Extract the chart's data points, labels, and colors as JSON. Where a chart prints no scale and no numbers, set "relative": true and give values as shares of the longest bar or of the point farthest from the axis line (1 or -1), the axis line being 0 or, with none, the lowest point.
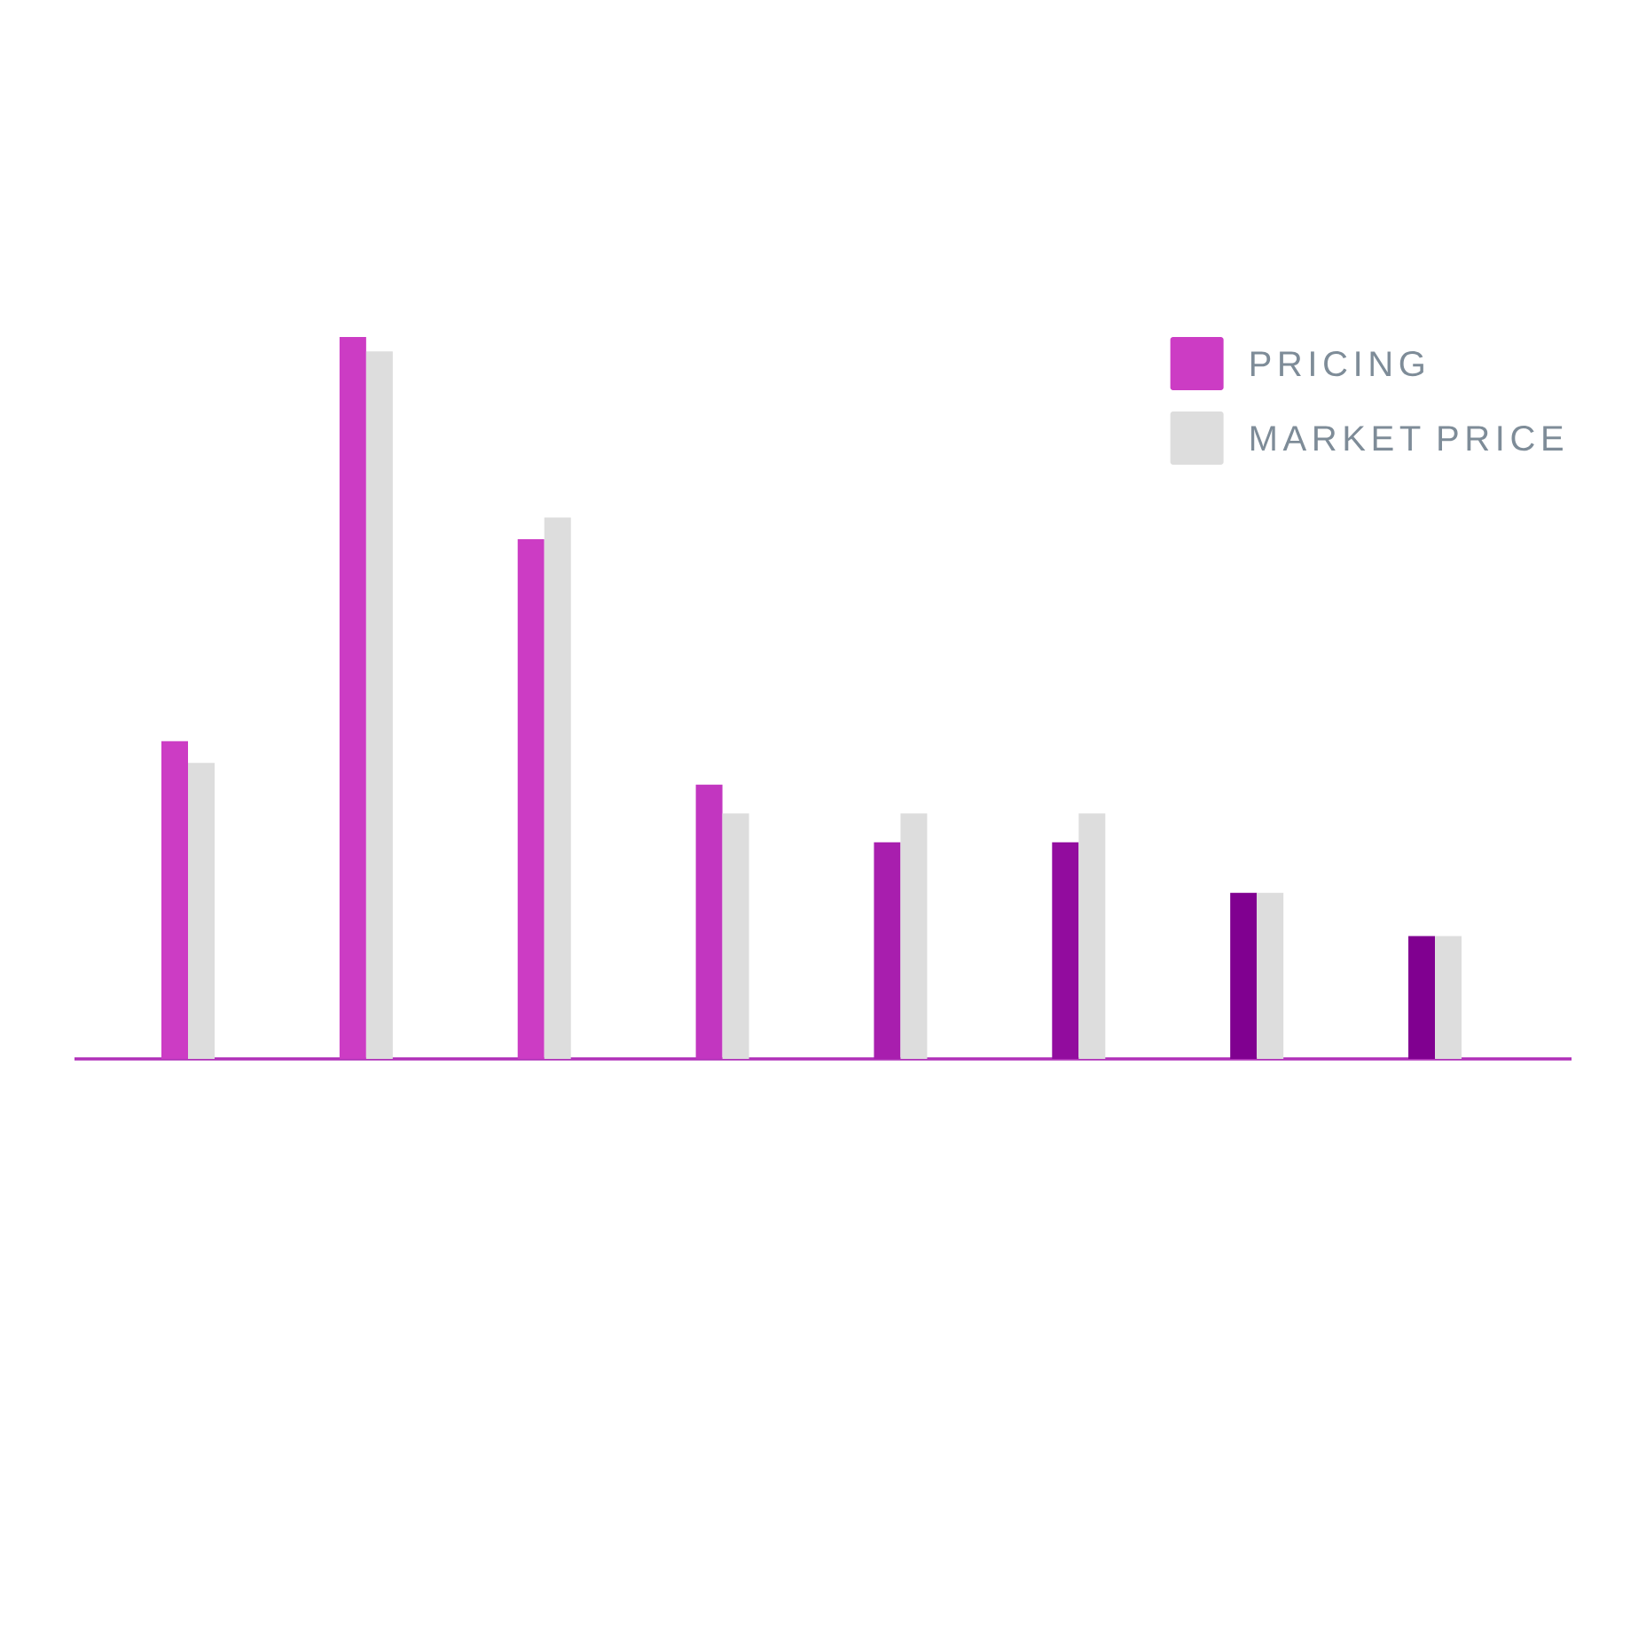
{
  "chart_data": {
    "type": "bar",
    "relative": true,
    "categories": [
      null,
      null,
      null,
      null,
      null,
      null,
      null,
      null
    ],
    "series": [
      {
        "name": "PRICING",
        "colors": [
          "#cc3cc4",
          "#cc3cc4",
          "#cc3cc4",
          "#c236c0",
          "#a81eae",
          "#920c9e",
          "#800090",
          "#800090"
        ],
        "values": [
          0.44,
          1,
          0.72,
          0.38,
          0.3,
          0.3,
          0.23,
          0.17
        ]
      },
      {
        "name": "MARKET PRICE",
        "color": "#dddddd",
        "values": [
          0.41,
          0.98,
          0.75,
          0.34,
          0.34,
          0.34,
          0.23,
          0.17
        ]
      }
    ],
    "legend": "top right"
  }
}
